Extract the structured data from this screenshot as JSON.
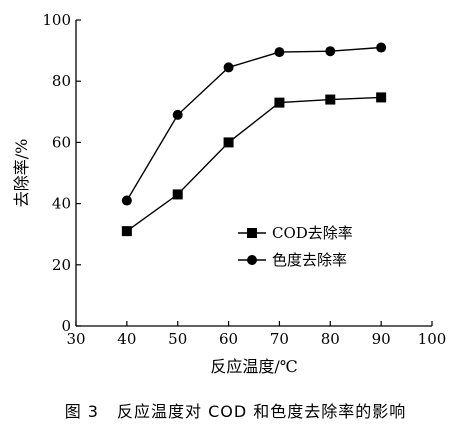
{
  "caption": {
    "figure_number": "图 3",
    "text": "反应温度对 COD 和色度去除率的影响"
  },
  "chart_data": {
    "type": "line",
    "title": "",
    "xlabel": "反应温度/℃",
    "ylabel": "去除率/%",
    "xlim": [
      30,
      100
    ],
    "ylim": [
      0,
      100
    ],
    "xticks": [
      30,
      40,
      50,
      60,
      70,
      80,
      90,
      100
    ],
    "yticks": [
      0,
      20,
      40,
      60,
      80,
      100
    ],
    "grid": false,
    "legend_position": "lower-right",
    "series": [
      {
        "name": "COD去除率",
        "marker": "square",
        "x": [
          40,
          50,
          60,
          70,
          80,
          90
        ],
        "y": [
          31,
          43,
          60,
          73,
          74,
          74.7
        ]
      },
      {
        "name": "色度去除率",
        "marker": "circle",
        "x": [
          40,
          50,
          60,
          70,
          80,
          90
        ],
        "y": [
          41,
          69,
          84.5,
          89.5,
          89.8,
          91
        ]
      }
    ]
  }
}
